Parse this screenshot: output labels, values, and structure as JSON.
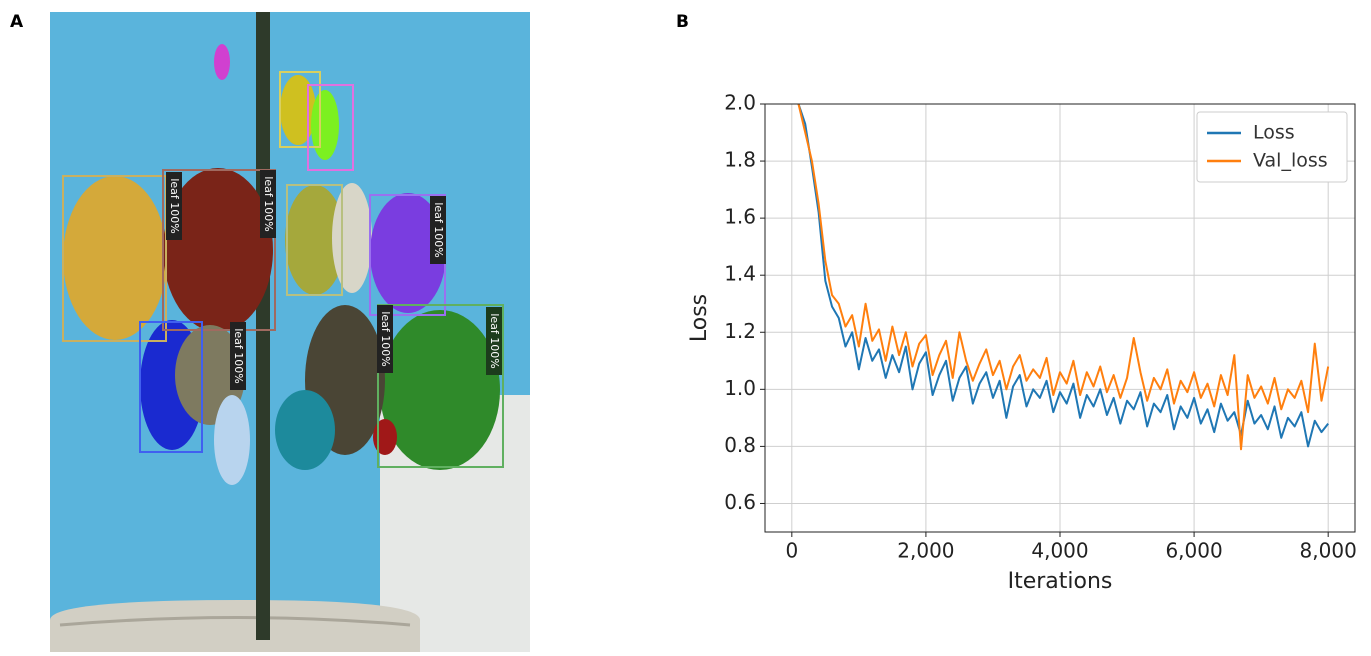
{
  "panel_labels": [
    "A",
    "B"
  ],
  "photo": {
    "detections": [
      "leaf 100%",
      "leaf 100%",
      "leaf 100%",
      "leaf 100%",
      "leaf 100%",
      "leaf 100%"
    ]
  },
  "chart_data": {
    "type": "line",
    "xlabel": "Iterations",
    "ylabel": "Loss",
    "x": [
      100,
      200,
      300,
      400,
      500,
      600,
      700,
      800,
      900,
      1000,
      1100,
      1200,
      1300,
      1400,
      1500,
      1600,
      1700,
      1800,
      1900,
      2000,
      2100,
      2200,
      2300,
      2400,
      2500,
      2600,
      2700,
      2800,
      2900,
      3000,
      3100,
      3200,
      3300,
      3400,
      3500,
      3600,
      3700,
      3800,
      3900,
      4000,
      4100,
      4200,
      4300,
      4400,
      4500,
      4600,
      4700,
      4800,
      4900,
      5000,
      5100,
      5200,
      5300,
      5400,
      5500,
      5600,
      5700,
      5800,
      5900,
      6000,
      6100,
      6200,
      6300,
      6400,
      6500,
      6600,
      6700,
      6800,
      6900,
      7000,
      7100,
      7200,
      7300,
      7400,
      7500,
      7600,
      7700,
      7800,
      7900,
      8000
    ],
    "series": [
      {
        "name": "Loss",
        "color": "#1f77b4",
        "values": [
          2.0,
          1.93,
          1.78,
          1.62,
          1.38,
          1.29,
          1.25,
          1.15,
          1.2,
          1.07,
          1.18,
          1.1,
          1.14,
          1.04,
          1.12,
          1.06,
          1.15,
          1.0,
          1.09,
          1.13,
          0.98,
          1.05,
          1.1,
          0.96,
          1.04,
          1.08,
          0.95,
          1.02,
          1.06,
          0.97,
          1.03,
          0.9,
          1.01,
          1.05,
          0.94,
          1.0,
          0.97,
          1.03,
          0.92,
          0.99,
          0.95,
          1.02,
          0.9,
          0.98,
          0.94,
          1.0,
          0.91,
          0.97,
          0.88,
          0.96,
          0.93,
          0.99,
          0.87,
          0.95,
          0.92,
          0.98,
          0.86,
          0.94,
          0.9,
          0.97,
          0.88,
          0.93,
          0.85,
          0.95,
          0.89,
          0.92,
          0.84,
          0.96,
          0.88,
          0.91,
          0.86,
          0.94,
          0.83,
          0.9,
          0.87,
          0.92,
          0.8,
          0.89,
          0.85,
          0.88
        ]
      },
      {
        "name": "Val_loss",
        "color": "#ff7f0e",
        "values": [
          2.0,
          1.9,
          1.8,
          1.65,
          1.45,
          1.33,
          1.3,
          1.22,
          1.26,
          1.15,
          1.3,
          1.17,
          1.21,
          1.1,
          1.22,
          1.12,
          1.2,
          1.08,
          1.16,
          1.19,
          1.05,
          1.12,
          1.17,
          1.04,
          1.2,
          1.1,
          1.03,
          1.09,
          1.14,
          1.05,
          1.1,
          1.0,
          1.08,
          1.12,
          1.03,
          1.07,
          1.04,
          1.11,
          0.98,
          1.06,
          1.02,
          1.1,
          0.98,
          1.06,
          1.01,
          1.08,
          0.99,
          1.05,
          0.97,
          1.04,
          1.18,
          1.06,
          0.96,
          1.04,
          1.0,
          1.07,
          0.95,
          1.03,
          0.99,
          1.06,
          0.97,
          1.02,
          0.94,
          1.05,
          0.98,
          1.12,
          0.79,
          1.05,
          0.97,
          1.01,
          0.95,
          1.04,
          0.93,
          1.0,
          0.97,
          1.03,
          0.92,
          1.16,
          0.96,
          1.08
        ]
      }
    ],
    "xlim": [
      -400,
      8400
    ],
    "ylim": [
      0.5,
      2.0
    ],
    "xticks": [
      0,
      {
        "value": 2000,
        "label": "2,000"
      },
      {
        "value": 4000,
        "label": "4,000"
      },
      {
        "value": 6000,
        "label": "6,000"
      },
      {
        "value": 8000,
        "label": "8,000"
      }
    ],
    "yticks": [
      0.6,
      0.8,
      {
        "value": 1.0,
        "label": "1.0"
      },
      1.2,
      1.4,
      1.6,
      1.8,
      {
        "value": 2.0,
        "label": "2.0"
      }
    ],
    "grid": true,
    "legend": "upper-right"
  }
}
